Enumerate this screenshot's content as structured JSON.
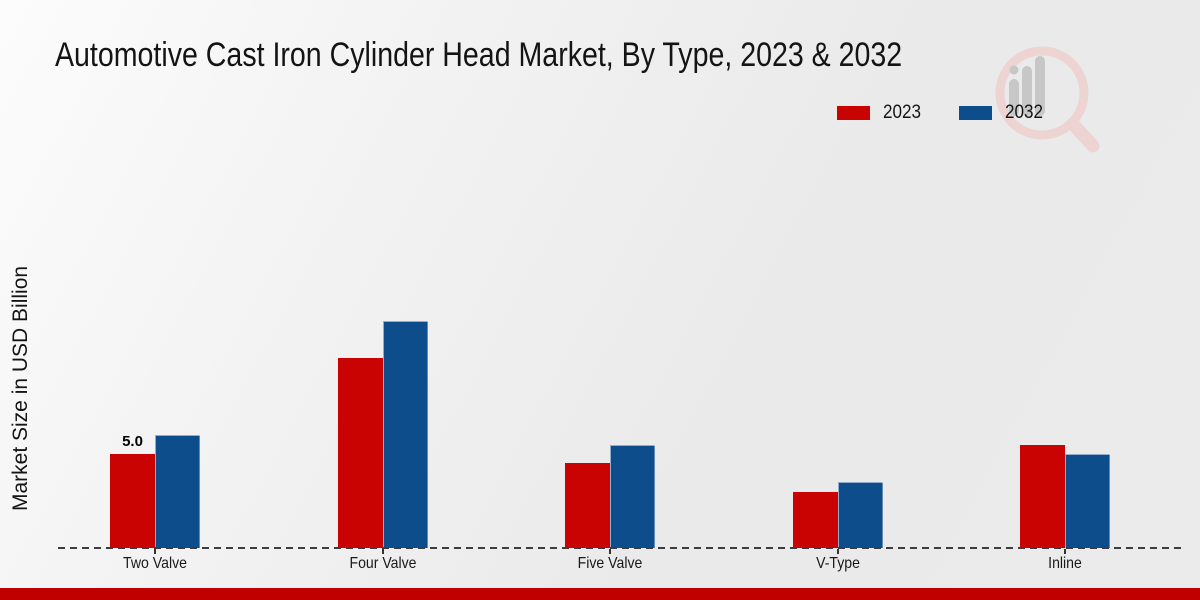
{
  "title": "Automotive Cast Iron Cylinder Head Market, By Type, 2023 & 2032",
  "y_axis_label": "Market Size in USD Billion",
  "legend": {
    "items": [
      {
        "label": "2023",
        "color": "#c90202"
      },
      {
        "label": "2032",
        "color": "#0e4d8c"
      }
    ]
  },
  "chart_data": {
    "type": "bar",
    "title": "Automotive Cast Iron Cylinder Head Market, By Type, 2023 & 2032",
    "categories": [
      "Two Valve",
      "Four Valve",
      "Five Valve",
      "V-Type",
      "Inline"
    ],
    "series": [
      {
        "name": "2023",
        "color": "#c90202",
        "values": [
          5.0,
          10.1,
          4.5,
          3.0,
          5.5
        ]
      },
      {
        "name": "2032",
        "color": "#0e4d8c",
        "values": [
          6.0,
          12.1,
          5.5,
          3.5,
          5.0
        ]
      }
    ],
    "xlabel": "",
    "ylabel": "Market Size in USD Billion",
    "ylim": [
      0,
      13
    ],
    "grid": false,
    "axis_line_style": "dashed",
    "legend_position": "top-right",
    "data_labels": [
      {
        "series_index": 0,
        "category_index": 0,
        "text": "5.0"
      }
    ]
  },
  "watermark": {
    "icon": "magnifier-bar-chart-logo",
    "glass_color": "#edd3d1",
    "bars_color": "#c7c7c7"
  },
  "footer": {
    "accent_color": "#c00000"
  }
}
